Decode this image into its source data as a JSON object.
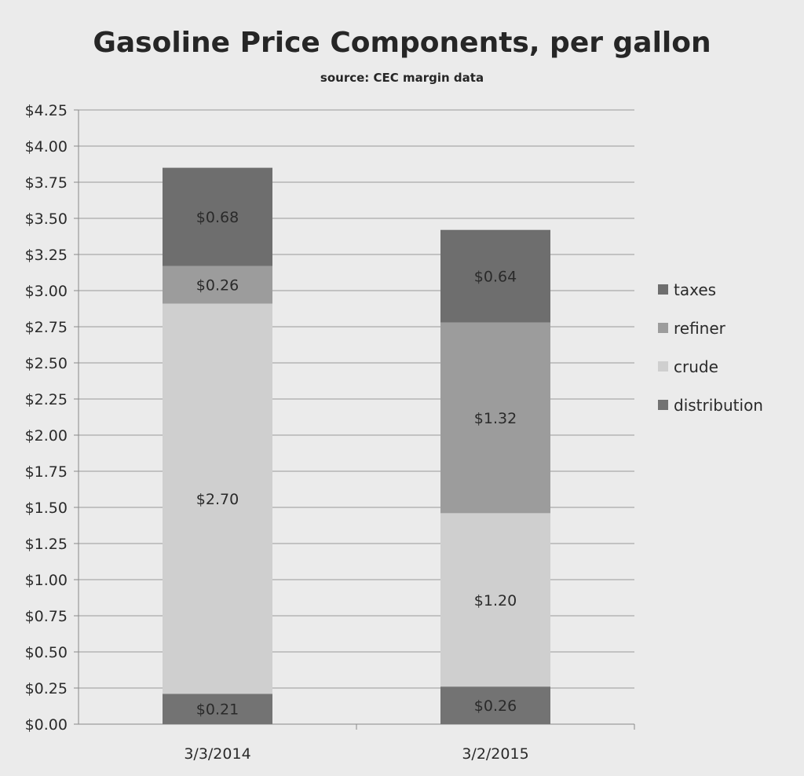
{
  "chart_data": {
    "type": "bar",
    "stacked": true,
    "title": "Gasoline Price Components, per gallon",
    "subtitle": "source:  CEC margin data",
    "categories": [
      "3/3/2014",
      "3/2/2015"
    ],
    "series": [
      {
        "name": "distribution",
        "values": [
          0.21,
          0.26
        ],
        "labels": [
          "$0.21",
          "$0.26"
        ],
        "color": "#737373"
      },
      {
        "name": "crude",
        "values": [
          2.7,
          1.2
        ],
        "labels": [
          "$2.70",
          "$1.20"
        ],
        "color": "#cfcfcf"
      },
      {
        "name": "refiner",
        "values": [
          0.26,
          1.32
        ],
        "labels": [
          "$0.26",
          "$1.32"
        ],
        "color": "#9c9c9c"
      },
      {
        "name": "taxes",
        "values": [
          0.68,
          0.64
        ],
        "labels": [
          "$0.68",
          "$0.64"
        ],
        "color": "#6e6e6e"
      }
    ],
    "legend_order": [
      "taxes",
      "refiner",
      "crude",
      "distribution"
    ],
    "legend_position": "right",
    "ylim": [
      0,
      4.25
    ],
    "y_ticks": [
      "$0.00",
      "$0.25",
      "$0.50",
      "$0.75",
      "$1.00",
      "$1.25",
      "$1.50",
      "$1.75",
      "$2.00",
      "$2.25",
      "$2.50",
      "$2.75",
      "$3.00",
      "$3.25",
      "$3.50",
      "$3.75",
      "$4.00",
      "$4.25"
    ],
    "grid": true
  }
}
